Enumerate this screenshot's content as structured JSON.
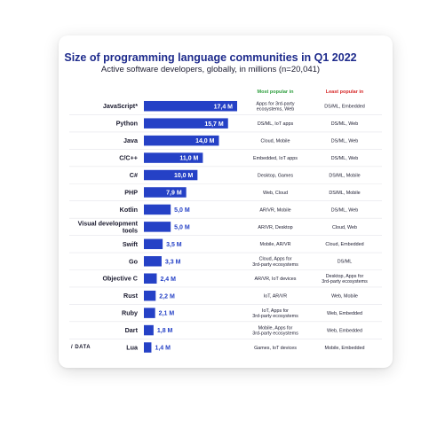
{
  "header": {
    "title": "Size of programming language communities in Q1 2022",
    "subtitle": "Active software developers, globally, in millions (n=20,041)",
    "col_most_popular": "Most popular in",
    "col_least_popular": "Least popular in"
  },
  "footer": {
    "logo_text": "/ DATA"
  },
  "colors": {
    "bar": "#2541c6",
    "title": "#1e2b8c",
    "most": "#2e9e3e",
    "least": "#d62828"
  },
  "chart_data": {
    "type": "bar",
    "orientation": "horizontal",
    "title": "Size of programming language communities in Q1 2022",
    "subtitle": "Active software developers, globally, in millions (n=20,041)",
    "xlim": [
      0,
      17.4
    ],
    "grid": false,
    "categories": [
      "JavaScript*",
      "Python",
      "Java",
      "C/C++",
      "C#",
      "PHP",
      "Kotlin",
      "Visual development tools",
      "Swift",
      "Go",
      "Objective C",
      "Rust",
      "Ruby",
      "Dart",
      "Lua"
    ],
    "values": [
      17.4,
      15.7,
      14.0,
      11.0,
      10.0,
      7.9,
      5.0,
      5.0,
      3.5,
      3.3,
      2.4,
      2.2,
      2.1,
      1.8,
      1.4
    ],
    "value_labels": [
      "17,4 M",
      "15,7 M",
      "14,0 M",
      "11,0 M",
      "10,0 M",
      "7,9 M",
      "5,0 M",
      "5,0 M",
      "3,5 M",
      "3,3 M",
      "2,4 M",
      "2,2 M",
      "2,1 M",
      "1,8 M",
      "1,4 M"
    ],
    "most_popular_in": [
      "Apps for 3rd-party ecosystems, Web",
      "DS/ML, IoT apps",
      "Cloud, Mobile",
      "Embedded, IoT apps",
      "Desktop, Games",
      "Web, Cloud",
      "AR/VR, Mobile",
      "AR/VR, Desktop",
      "Mobile, AR/VR",
      "Cloud, Apps for 3rd-party ecosystems",
      "AR/VR, IoT devices",
      "IoT, AR/VR",
      "IoT, Apps for 3rd-party ecosystems",
      "Mobile, Apps for 3rd-party ecosystems",
      "Games, IoT devices"
    ],
    "least_popular_in": [
      "DS/ML, Embedded",
      "DS/ML, Web",
      "DS/ML, Web",
      "DS/ML, Web",
      "DS/ML, Mobile",
      "DS/ML, Mobile",
      "DS/ML, Web",
      "Cloud, Web",
      "Cloud, Embedded",
      "DS/ML",
      "Desktop, Apps for 3rd-party ecosystems",
      "Web, Mobile",
      "Web, Embedded",
      "Web, Embedded",
      "Mobile, Embedded"
    ]
  }
}
